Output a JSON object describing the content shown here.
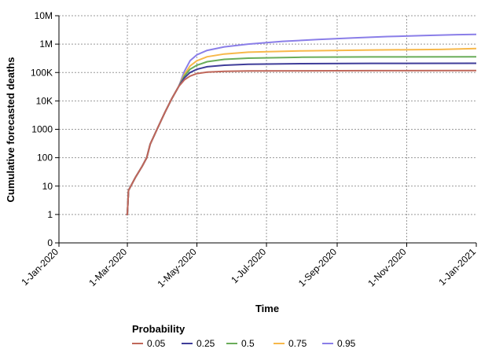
{
  "chart_data": {
    "type": "line",
    "title": "",
    "xlabel": "Time",
    "ylabel": "Cumulative forecasted deaths",
    "x_scale": "date",
    "y_scale": "log",
    "xlim": [
      "2020-01-01",
      "2021-01-01"
    ],
    "ylim": [
      0.1,
      10000000
    ],
    "x_ticks": [
      {
        "date": "2020-01-01",
        "label": "1-Jan-2020"
      },
      {
        "date": "2020-03-01",
        "label": "1-Mar-2020"
      },
      {
        "date": "2020-05-01",
        "label": "1-May-2020"
      },
      {
        "date": "2020-07-01",
        "label": "1-Jul-2020"
      },
      {
        "date": "2020-09-01",
        "label": "1-Sep-2020"
      },
      {
        "date": "2020-11-01",
        "label": "1-Nov-2020"
      },
      {
        "date": "2021-01-01",
        "label": "1-Jan-2021"
      }
    ],
    "y_ticks": [
      {
        "value": 0.1,
        "label": "0"
      },
      {
        "value": 1,
        "label": "1"
      },
      {
        "value": 10,
        "label": "10"
      },
      {
        "value": 100,
        "label": "100"
      },
      {
        "value": 1000,
        "label": "1000"
      },
      {
        "value": 10000,
        "label": "10K"
      },
      {
        "value": 100000,
        "label": "100K"
      },
      {
        "value": 1000000,
        "label": "1M"
      },
      {
        "value": 10000000,
        "label": "10M"
      }
    ],
    "grid": true,
    "legend": {
      "title": "Probability",
      "position": "bottom-left"
    },
    "colors": {
      "0.05": "#c0675a",
      "0.25": "#3f3d99",
      "0.5": "#6aad5a",
      "0.75": "#f7b84a",
      "0.95": "#8a7ee8"
    },
    "shared_early": [
      {
        "x": "2020-02-29",
        "y": 1
      },
      {
        "x": "2020-03-01",
        "y": 1
      },
      {
        "x": "2020-03-02",
        "y": 7
      },
      {
        "x": "2020-03-04",
        "y": 10
      },
      {
        "x": "2020-03-08",
        "y": 20
      },
      {
        "x": "2020-03-14",
        "y": 50
      },
      {
        "x": "2020-03-18",
        "y": 100
      },
      {
        "x": "2020-03-21",
        "y": 300
      },
      {
        "x": "2020-03-27",
        "y": 1000
      },
      {
        "x": "2020-04-03",
        "y": 4000
      },
      {
        "x": "2020-04-09",
        "y": 12000
      },
      {
        "x": "2020-04-15",
        "y": 32000
      }
    ],
    "series": [
      {
        "name": "0.05",
        "points": [
          {
            "x": "2020-04-20",
            "y": 55000
          },
          {
            "x": "2020-04-25",
            "y": 75000
          },
          {
            "x": "2020-05-01",
            "y": 92000
          },
          {
            "x": "2020-05-10",
            "y": 103000
          },
          {
            "x": "2020-05-25",
            "y": 110000
          },
          {
            "x": "2020-06-15",
            "y": 113000
          },
          {
            "x": "2020-08-01",
            "y": 115000
          },
          {
            "x": "2020-10-01",
            "y": 116000
          },
          {
            "x": "2021-01-01",
            "y": 117000
          }
        ]
      },
      {
        "name": "0.25",
        "points": [
          {
            "x": "2020-04-20",
            "y": 65000
          },
          {
            "x": "2020-04-25",
            "y": 100000
          },
          {
            "x": "2020-05-01",
            "y": 130000
          },
          {
            "x": "2020-05-10",
            "y": 160000
          },
          {
            "x": "2020-05-25",
            "y": 180000
          },
          {
            "x": "2020-06-15",
            "y": 195000
          },
          {
            "x": "2020-08-01",
            "y": 205000
          },
          {
            "x": "2020-10-01",
            "y": 210000
          },
          {
            "x": "2021-01-01",
            "y": 212000
          }
        ]
      },
      {
        "name": "0.5",
        "points": [
          {
            "x": "2020-04-20",
            "y": 75000
          },
          {
            "x": "2020-04-25",
            "y": 130000
          },
          {
            "x": "2020-05-01",
            "y": 180000
          },
          {
            "x": "2020-05-10",
            "y": 240000
          },
          {
            "x": "2020-05-25",
            "y": 290000
          },
          {
            "x": "2020-06-15",
            "y": 320000
          },
          {
            "x": "2020-08-01",
            "y": 345000
          },
          {
            "x": "2020-10-01",
            "y": 355000
          },
          {
            "x": "2021-01-01",
            "y": 360000
          }
        ]
      },
      {
        "name": "0.75",
        "points": [
          {
            "x": "2020-04-20",
            "y": 85000
          },
          {
            "x": "2020-04-25",
            "y": 170000
          },
          {
            "x": "2020-05-01",
            "y": 260000
          },
          {
            "x": "2020-05-10",
            "y": 360000
          },
          {
            "x": "2020-05-25",
            "y": 450000
          },
          {
            "x": "2020-06-15",
            "y": 520000
          },
          {
            "x": "2020-08-01",
            "y": 580000
          },
          {
            "x": "2020-10-01",
            "y": 620000
          },
          {
            "x": "2020-12-01",
            "y": 650000
          },
          {
            "x": "2021-01-01",
            "y": 700000
          }
        ]
      },
      {
        "name": "0.95",
        "points": [
          {
            "x": "2020-04-20",
            "y": 110000
          },
          {
            "x": "2020-04-25",
            "y": 260000
          },
          {
            "x": "2020-05-01",
            "y": 420000
          },
          {
            "x": "2020-05-10",
            "y": 600000
          },
          {
            "x": "2020-05-25",
            "y": 800000
          },
          {
            "x": "2020-06-15",
            "y": 1000000
          },
          {
            "x": "2020-07-15",
            "y": 1250000
          },
          {
            "x": "2020-08-15",
            "y": 1450000
          },
          {
            "x": "2020-09-15",
            "y": 1650000
          },
          {
            "x": "2020-10-15",
            "y": 1850000
          },
          {
            "x": "2020-11-15",
            "y": 2000000
          },
          {
            "x": "2020-12-15",
            "y": 2150000
          },
          {
            "x": "2021-01-01",
            "y": 2200000
          }
        ]
      }
    ]
  }
}
